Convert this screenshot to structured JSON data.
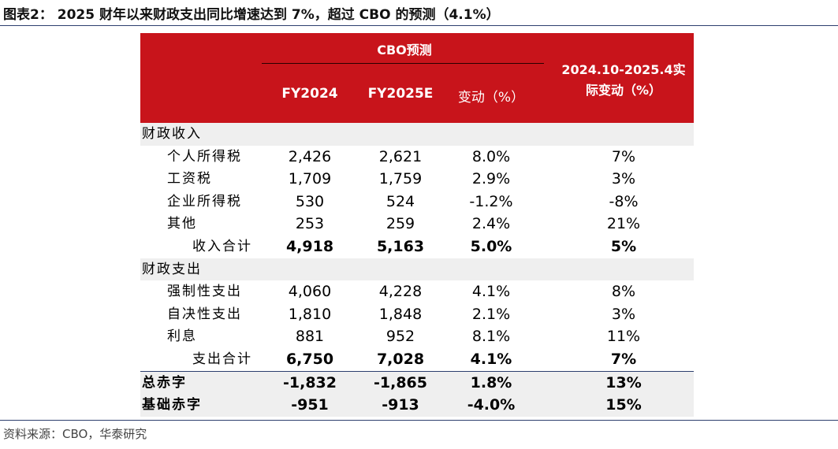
{
  "figure_title": "图表2： 2025 财年以来财政支出同比增速达到 7%，超过 CBO 的预测（4.1%）",
  "header": {
    "cbo_group": "CBO预测",
    "col_fy2024": "FY2024",
    "col_fy2025e": "FY2025E",
    "col_change": "变动（%）",
    "col_actual_line1": "2024.10-2025.4实",
    "col_actual_line2": "际变动（%）"
  },
  "sections": {
    "revenue": "财政收入",
    "spending": "财政支出"
  },
  "rows": [
    {
      "label": "个人所得税",
      "fy2024": "2,426",
      "fy2025e": "2,621",
      "change": "8.0%",
      "actual": "7%"
    },
    {
      "label": "工资税",
      "fy2024": "1,709",
      "fy2025e": "1,759",
      "change": "2.9%",
      "actual": "3%"
    },
    {
      "label": "企业所得税",
      "fy2024": "530",
      "fy2025e": "524",
      "change": "-1.2%",
      "actual": "-8%"
    },
    {
      "label": "其他",
      "fy2024": "253",
      "fy2025e": "259",
      "change": "2.4%",
      "actual": "21%"
    },
    {
      "label": "收入合计",
      "fy2024": "4,918",
      "fy2025e": "5,163",
      "change": "5.0%",
      "actual": "5%"
    },
    {
      "label": "强制性支出",
      "fy2024": "4,060",
      "fy2025e": "4,228",
      "change": "4.1%",
      "actual": "8%"
    },
    {
      "label": "自决性支出",
      "fy2024": "1,810",
      "fy2025e": "1,848",
      "change": "2.1%",
      "actual": "3%"
    },
    {
      "label": "利息",
      "fy2024": "881",
      "fy2025e": "952",
      "change": "8.1%",
      "actual": "11%"
    },
    {
      "label": "支出合计",
      "fy2024": "6,750",
      "fy2025e": "7,028",
      "change": "4.1%",
      "actual": "7%"
    },
    {
      "label": "总赤字",
      "fy2024": "-1,832",
      "fy2025e": "-1,865",
      "change": "1.8%",
      "actual": "13%"
    },
    {
      "label": "基础赤字",
      "fy2024": "-951",
      "fy2025e": "-913",
      "change": "-4.0%",
      "actual": "15%"
    }
  ],
  "source": "资料来源：CBO，华泰研究",
  "colors": {
    "header_bg": "#c8141b",
    "row_shade": "#efefef",
    "rule": "#2c3e6e"
  }
}
